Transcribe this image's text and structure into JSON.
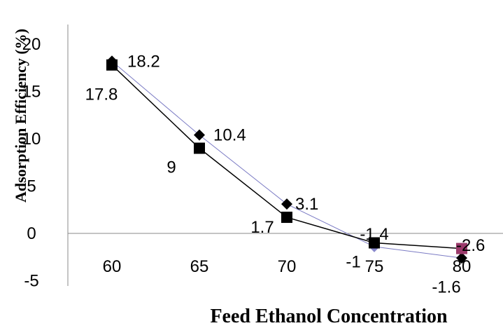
{
  "chart_data": {
    "type": "line",
    "title": "",
    "xlabel": "Feed Ethanol Concentration",
    "ylabel": "Adsorption Efficiency (%)",
    "x": [
      60,
      65,
      70,
      75,
      80
    ],
    "ylim": [
      -5,
      20
    ],
    "y_ticks": [
      -5,
      0,
      5,
      10,
      15,
      20
    ],
    "grid": false,
    "legend": "none",
    "series": [
      {
        "marker": "diamond",
        "color": "#000000",
        "line_color": "#7b7bc4",
        "values": [
          18.2,
          10.4,
          3.1,
          -1.4,
          -2.6
        ],
        "labels": [
          "18.2",
          "10.4",
          "3.1",
          "-1.4",
          "-2.6"
        ]
      },
      {
        "marker": "square",
        "color": "#000000",
        "line_color": "#000000",
        "last_marker_color": "#9b3a6b",
        "values": [
          17.8,
          9,
          1.7,
          -1,
          -1.6
        ],
        "labels": [
          "17.8",
          "9",
          "1.7",
          "-1",
          "-1.6"
        ]
      }
    ]
  }
}
